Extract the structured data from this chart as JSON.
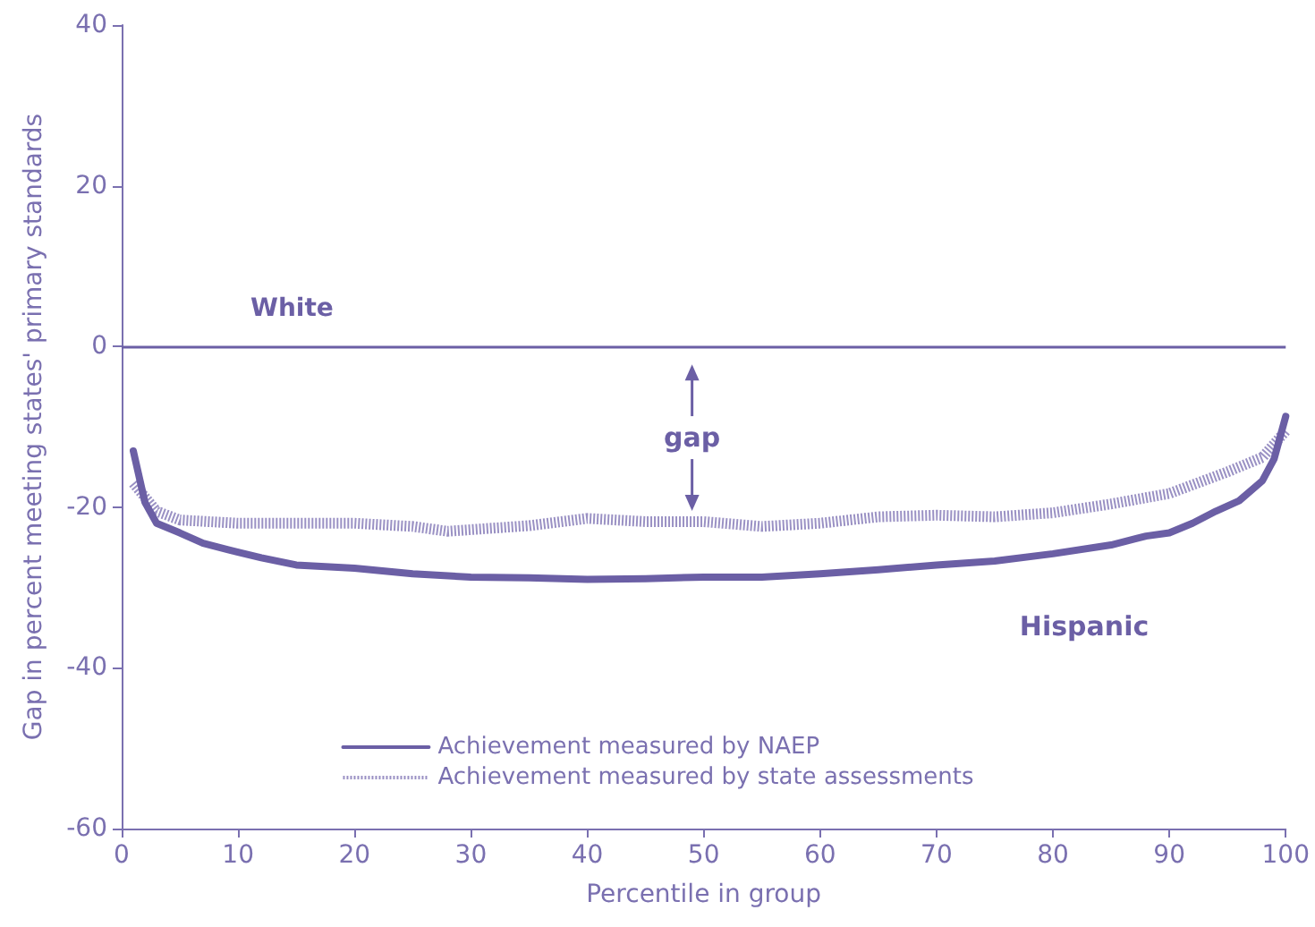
{
  "chart_data": {
    "type": "line",
    "xlabel": "Percentile in group",
    "ylabel": "Gap in percent meeting states' primary standards",
    "xlim": [
      0,
      100
    ],
    "xticks": [
      0,
      10,
      20,
      30,
      40,
      50,
      60,
      70,
      80,
      90,
      100
    ],
    "ylim": [
      -60,
      40
    ],
    "yticks": [
      -60,
      -40,
      -20,
      0,
      20,
      40
    ],
    "grid": false,
    "legend": "bottom",
    "marker": "none",
    "ref_lines": [
      {
        "axis": "y",
        "value": 0,
        "label": "White",
        "color": "#6b5fa5",
        "line_style": "solid"
      }
    ],
    "annotations": [
      {
        "text": "gap",
        "x": 49,
        "y": -21.8
      },
      "Hispanic"
    ],
    "series": [
      {
        "name": "Achievement measured by NAEP",
        "color": "#6b5fa5",
        "line_style": "solid",
        "x": [
          1,
          2,
          3,
          5,
          7,
          10,
          12,
          15,
          20,
          25,
          30,
          35,
          40,
          45,
          50,
          55,
          60,
          65,
          70,
          75,
          80,
          85,
          88,
          90,
          92,
          94,
          96,
          98,
          99,
          100
        ],
        "values": [
          -13,
          -19.4,
          -22,
          -23.2,
          -24.5,
          -25.6,
          -26.3,
          -27.2,
          -27.6,
          -28.3,
          -28.7,
          -28.8,
          -29,
          -28.9,
          -28.7,
          -28.7,
          -28.3,
          -27.8,
          -27.2,
          -26.7,
          -25.8,
          -24.7,
          -23.6,
          -23.2,
          -22,
          -20.5,
          -19.2,
          -16.7,
          -14,
          -8.7
        ]
      },
      {
        "name": "Achievement measured by state assessments",
        "color": "#9a91c4",
        "line_style": "dotted",
        "x": [
          1,
          3,
          5,
          10,
          15,
          20,
          25,
          28,
          35,
          40,
          45,
          50,
          55,
          60,
          65,
          70,
          75,
          80,
          85,
          90,
          95,
          98,
          100
        ],
        "values": [
          -17,
          -20.5,
          -21.6,
          -22,
          -22,
          -22,
          -22.4,
          -23,
          -22.3,
          -21.4,
          -21.8,
          -21.8,
          -22.4,
          -22,
          -21.2,
          -21,
          -21.2,
          -20.7,
          -19.6,
          -18.3,
          -15.6,
          -13.8,
          -10.5
        ]
      }
    ]
  }
}
